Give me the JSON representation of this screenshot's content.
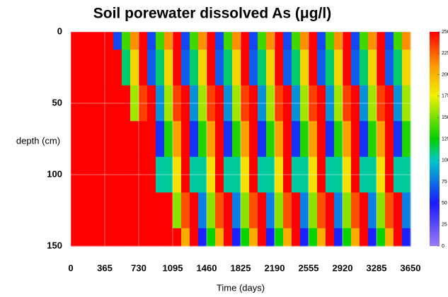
{
  "chart_data": {
    "type": "heatmap",
    "title": "Soil porewater dissolved As (μg/l)",
    "x_label": "Time (days)",
    "y_label": "depth (cm)",
    "xlim": [
      0,
      3650
    ],
    "xticks": [
      0,
      365,
      730,
      1095,
      1460,
      1825,
      2190,
      2555,
      2920,
      3285,
      3650
    ],
    "ylim": [
      0,
      150
    ],
    "yticks": [
      0,
      50,
      100,
      150
    ],
    "y_inverted": true,
    "grid": true,
    "y": [
      0,
      25,
      50,
      75,
      100,
      125,
      150
    ],
    "z": [
      [
        250,
        250,
        250,
        250,
        250,
        63,
        138,
        213,
        250,
        63,
        138,
        213,
        250,
        63,
        138,
        213,
        250,
        63,
        138,
        213,
        250,
        63,
        138,
        213,
        250,
        63,
        138,
        213,
        250,
        63,
        138,
        213,
        250,
        63,
        138,
        213,
        250,
        63,
        138,
        213
      ],
      [
        250,
        250,
        250,
        250,
        250,
        250,
        111,
        186,
        250,
        69,
        111,
        186,
        250,
        69,
        111,
        186,
        250,
        69,
        111,
        186,
        250,
        69,
        111,
        186,
        250,
        69,
        111,
        186,
        250,
        69,
        111,
        186,
        250,
        69,
        111,
        186,
        250,
        69,
        111,
        186
      ],
      [
        250,
        250,
        250,
        250,
        250,
        250,
        250,
        159,
        234,
        250,
        84,
        159,
        234,
        250,
        84,
        159,
        234,
        250,
        84,
        159,
        234,
        250,
        84,
        159,
        234,
        250,
        84,
        159,
        234,
        250,
        84,
        159,
        234,
        250,
        84,
        159,
        234,
        250,
        84,
        159
      ],
      [
        250,
        250,
        250,
        250,
        250,
        250,
        250,
        250,
        250,
        250,
        57,
        132,
        207,
        250,
        57,
        132,
        207,
        250,
        57,
        132,
        207,
        250,
        57,
        132,
        207,
        250,
        57,
        132,
        207,
        250,
        57,
        132,
        207,
        250,
        57,
        132,
        207,
        250,
        57,
        132
      ],
      [
        250,
        250,
        250,
        250,
        250,
        250,
        250,
        250,
        250,
        250,
        105,
        106,
        181,
        250,
        105,
        106,
        181,
        250,
        105,
        106,
        181,
        250,
        105,
        106,
        181,
        250,
        105,
        106,
        181,
        250,
        105,
        106,
        181,
        250,
        105,
        106,
        181,
        250,
        105,
        106
      ],
      [
        250,
        250,
        250,
        250,
        250,
        250,
        250,
        250,
        250,
        250,
        250,
        250,
        154,
        229,
        250,
        79,
        154,
        229,
        250,
        79,
        154,
        229,
        250,
        79,
        154,
        229,
        250,
        79,
        154,
        229,
        250,
        79,
        154,
        229,
        250,
        79,
        154,
        229,
        250,
        79
      ],
      [
        250,
        250,
        250,
        250,
        250,
        250,
        250,
        250,
        250,
        250,
        250,
        250,
        250,
        202,
        250,
        52,
        127,
        202,
        250,
        52,
        127,
        202,
        250,
        52,
        127,
        202,
        250,
        52,
        127,
        202,
        250,
        52,
        127,
        202,
        250,
        52,
        127,
        202,
        250,
        52
      ]
    ],
    "clim": [
      0,
      250
    ],
    "colorbar_ticks": [
      0,
      25,
      50,
      75,
      100,
      125,
      150,
      175,
      200,
      225,
      250
    ],
    "colorscale": [
      [
        0,
        "#9b7cf5"
      ],
      [
        50,
        "#1a1aff"
      ],
      [
        100,
        "#00c8c8"
      ],
      [
        125,
        "#00d000"
      ],
      [
        175,
        "#f0f000"
      ],
      [
        210,
        "#ff9a00"
      ],
      [
        250,
        "#ff0000"
      ]
    ]
  }
}
